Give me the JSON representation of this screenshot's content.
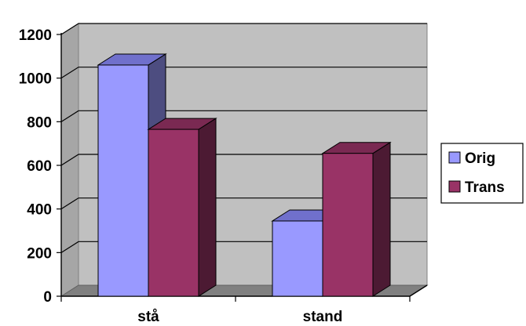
{
  "chart_data": {
    "type": "bar",
    "categories": [
      "stå",
      "stand"
    ],
    "series": [
      {
        "name": "Orig",
        "values": [
          1060,
          345
        ],
        "color": "#9999ff",
        "side_color": "#4d4d80",
        "top_color": "#7070cc"
      },
      {
        "name": "Trans",
        "values": [
          765,
          655
        ],
        "color": "#993366",
        "side_color": "#4c1a33",
        "top_color": "#7a2952"
      }
    ],
    "yticks": [
      0,
      200,
      400,
      600,
      800,
      1000,
      1200
    ],
    "ylim": [
      0,
      1200
    ],
    "grid": true,
    "legend": "right",
    "title": "",
    "xlabel": "",
    "ylabel": "",
    "wall_color": "#c0c0c0",
    "floor_color": "#808080"
  }
}
